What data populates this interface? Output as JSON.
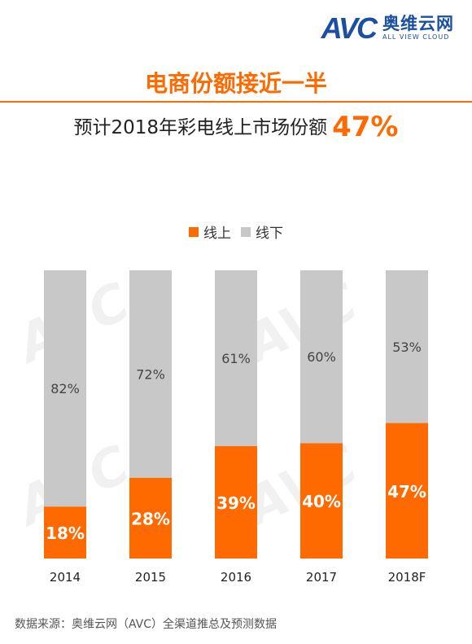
{
  "logo": {
    "mark": "AVC",
    "cn": "奥维云网",
    "en": "ALL VIEW CLOUD"
  },
  "headline": "电商份额接近一半",
  "subheadline": {
    "text": "预计2018年彩电线上市场份额",
    "highlight": "47%"
  },
  "source": "数据来源：奥维云网（AVC）全渠道推总及预测数据",
  "colors": {
    "online": "#ff6a00",
    "offline": "#c8c8c8",
    "accent": "#ff6a00",
    "brand": "#1b4fa0"
  },
  "chart_data": {
    "type": "bar",
    "stacked": true,
    "percent": true,
    "categories": [
      "2014",
      "2015",
      "2016",
      "2017",
      "2018F"
    ],
    "series": [
      {
        "name": "线上",
        "values": [
          18,
          28,
          39,
          40,
          47
        ],
        "labels": [
          "18%",
          "28%",
          "39%",
          "40%",
          "47%"
        ]
      },
      {
        "name": "线下",
        "values": [
          82,
          72,
          61,
          60,
          53
        ],
        "labels": [
          "82%",
          "72%",
          "61%",
          "60%",
          "53%"
        ]
      }
    ],
    "ylim": [
      0,
      100
    ],
    "legend": "top-center",
    "grid": false
  }
}
